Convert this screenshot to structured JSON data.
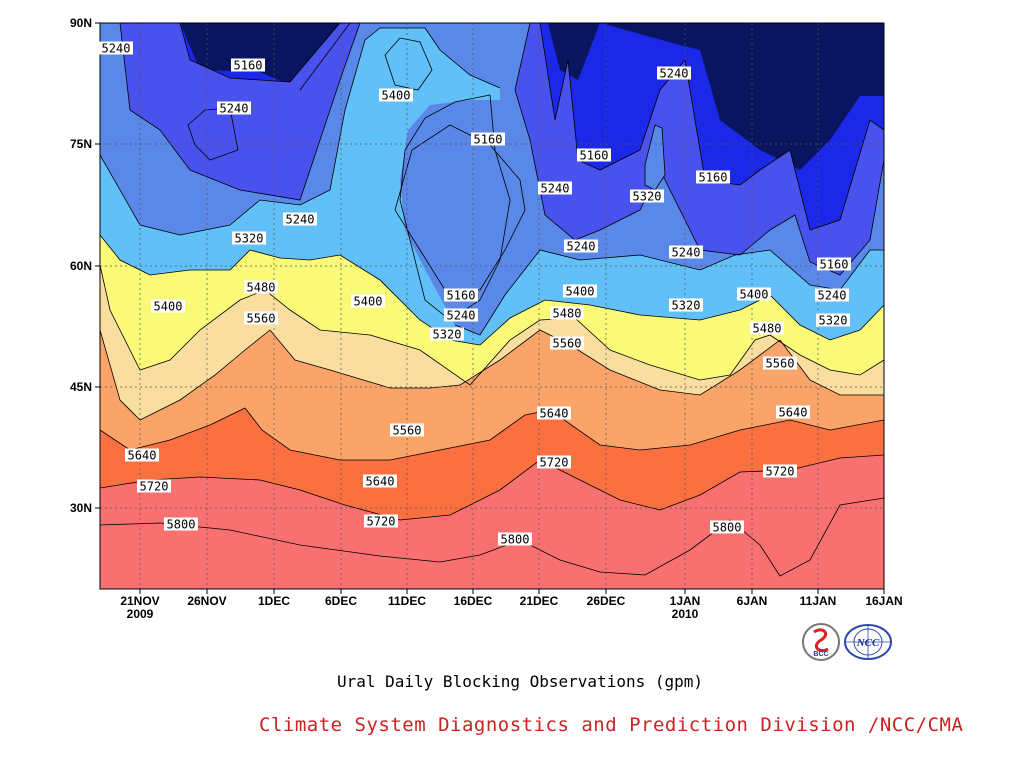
{
  "chart_data": {
    "type": "contour",
    "title": "Ural Daily Blocking Observations (gpm)",
    "source": "Climate System Diagnostics and Prediction Division /NCC/CMA",
    "y_axis": {
      "ticks": [
        "90N",
        "75N",
        "60N",
        "45N",
        "30N"
      ]
    },
    "x_axis": {
      "ticks": [
        {
          "label": "21NOV",
          "sub": "2009"
        },
        {
          "label": "26NOV",
          "sub": ""
        },
        {
          "label": "1DEC",
          "sub": ""
        },
        {
          "label": "6DEC",
          "sub": ""
        },
        {
          "label": "11DEC",
          "sub": ""
        },
        {
          "label": "16DEC",
          "sub": ""
        },
        {
          "label": "21DEC",
          "sub": ""
        },
        {
          "label": "26DEC",
          "sub": ""
        },
        {
          "label": "1JAN",
          "sub": "2010"
        },
        {
          "label": "6JAN",
          "sub": ""
        },
        {
          "label": "11JAN",
          "sub": ""
        },
        {
          "label": "16JAN",
          "sub": ""
        }
      ]
    },
    "grid": true,
    "contour_levels": [
      5160,
      5240,
      5320,
      5400,
      5480,
      5560,
      5640,
      5720,
      5800
    ],
    "fill_colors": [
      "#0a1560",
      "#1c28e8",
      "#4a52ee",
      "#5a88e8",
      "#62c0f8",
      "#fafa78",
      "#fadea0",
      "#faa46a",
      "#fa7040",
      "#f87070"
    ],
    "contour_labels": [
      {
        "text": "5240"
      },
      {
        "text": "5160"
      },
      {
        "text": "5240"
      },
      {
        "text": "5400"
      },
      {
        "text": "5160"
      },
      {
        "text": "5240"
      },
      {
        "text": "5160"
      },
      {
        "text": "5240"
      },
      {
        "text": "5320"
      },
      {
        "text": "5160"
      },
      {
        "text": "5240"
      },
      {
        "text": "5320"
      },
      {
        "text": "5240"
      },
      {
        "text": "5240"
      },
      {
        "text": "5160"
      },
      {
        "text": "5400"
      },
      {
        "text": "5480"
      },
      {
        "text": "5400"
      },
      {
        "text": "5160"
      },
      {
        "text": "5240"
      },
      {
        "text": "5320"
      },
      {
        "text": "5400"
      },
      {
        "text": "5320"
      },
      {
        "text": "5400"
      },
      {
        "text": "5240"
      },
      {
        "text": "5320"
      },
      {
        "text": "5560"
      },
      {
        "text": "5480"
      },
      {
        "text": "5480"
      },
      {
        "text": "5560"
      },
      {
        "text": "5560"
      },
      {
        "text": "5560"
      },
      {
        "text": "5640"
      },
      {
        "text": "5640"
      },
      {
        "text": "5640"
      },
      {
        "text": "5640"
      },
      {
        "text": "5720"
      },
      {
        "text": "5720"
      },
      {
        "text": "5720"
      },
      {
        "text": "5720"
      },
      {
        "text": "5800"
      },
      {
        "text": "5800"
      },
      {
        "text": "5800"
      }
    ]
  },
  "logos": {
    "bcc": "BCC",
    "ncc": "NCC"
  }
}
